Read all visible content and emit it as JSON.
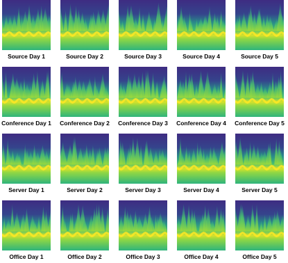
{
  "rows": [
    [
      "Source Day 1",
      "Source Day 2",
      "Source Day 3",
      "Source Day 4",
      "Source Day 5"
    ],
    [
      "Conference Day 1",
      "Conference Day 2",
      "Conference Day 3",
      "Conference Day 4",
      "Conference Day 5"
    ],
    [
      "Server Day 1",
      "Server Day 2",
      "Server Day 3",
      "Server Day 4",
      "Server Day 5"
    ],
    [
      "Office Day 1",
      "Office Day 2",
      "Office Day 3",
      "Office Day 4",
      "Office Day 5"
    ]
  ]
}
